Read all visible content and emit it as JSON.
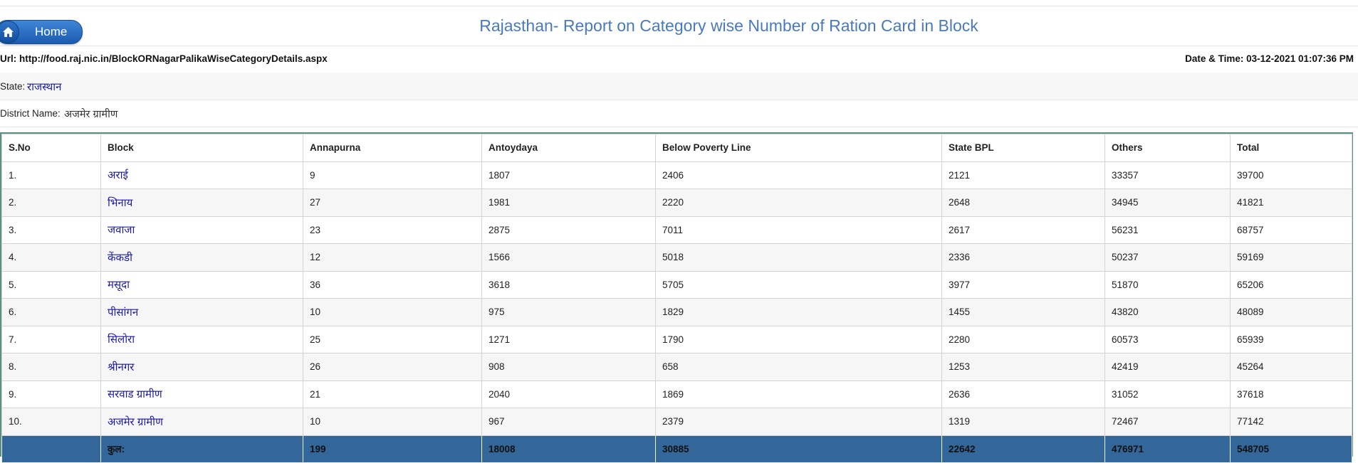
{
  "header": {
    "home_label": "Home",
    "title": "Rajasthan- Report on Category wise Number of Ration Card in Block"
  },
  "info": {
    "url_label": "Url:",
    "url_value": "http://food.raj.nic.in/BlockORNagarPalikaWiseCategoryDetails.aspx",
    "datetime_label": "Date & Time:",
    "datetime_value": "03-12-2021 01:07:36 PM",
    "state_label": "State:",
    "state_value": "राजस्थान",
    "district_label": "District Name:",
    "district_value": "अजमेर ग्रामीण"
  },
  "table": {
    "columns": [
      "S.No",
      "Block",
      "Annapurna",
      "Antoydaya",
      "Below Poverty Line",
      "State BPL",
      "Others",
      "Total"
    ],
    "rows": [
      {
        "sno": "1.",
        "block": "अराई",
        "annapurna": "9",
        "antoydaya": "1807",
        "bpl": "2406",
        "state_bpl": "2121",
        "others": "33357",
        "total": "39700"
      },
      {
        "sno": "2.",
        "block": "भिनाय",
        "annapurna": "27",
        "antoydaya": "1981",
        "bpl": "2220",
        "state_bpl": "2648",
        "others": "34945",
        "total": "41821"
      },
      {
        "sno": "3.",
        "block": "जवाजा",
        "annapurna": "23",
        "antoydaya": "2875",
        "bpl": "7011",
        "state_bpl": "2617",
        "others": "56231",
        "total": "68757"
      },
      {
        "sno": "4.",
        "block": "केंकडी",
        "annapurna": "12",
        "antoydaya": "1566",
        "bpl": "5018",
        "state_bpl": "2336",
        "others": "50237",
        "total": "59169"
      },
      {
        "sno": "5.",
        "block": "मसूदा",
        "annapurna": "36",
        "antoydaya": "3618",
        "bpl": "5705",
        "state_bpl": "3977",
        "others": "51870",
        "total": "65206"
      },
      {
        "sno": "6.",
        "block": "पीसांगन",
        "annapurna": "10",
        "antoydaya": "975",
        "bpl": "1829",
        "state_bpl": "1455",
        "others": "43820",
        "total": "48089"
      },
      {
        "sno": "7.",
        "block": "सिलोरा",
        "annapurna": "25",
        "antoydaya": "1271",
        "bpl": "1790",
        "state_bpl": "2280",
        "others": "60573",
        "total": "65939"
      },
      {
        "sno": "8.",
        "block": "श्रीनगर",
        "annapurna": "26",
        "antoydaya": "908",
        "bpl": "658",
        "state_bpl": "1253",
        "others": "42419",
        "total": "45264"
      },
      {
        "sno": "9.",
        "block": "सरवाड ग्रामीण",
        "annapurna": "21",
        "antoydaya": "2040",
        "bpl": "1869",
        "state_bpl": "2636",
        "others": "31052",
        "total": "37618"
      },
      {
        "sno": "10.",
        "block": "अजमेर ग्रामीण",
        "annapurna": "10",
        "antoydaya": "967",
        "bpl": "2379",
        "state_bpl": "1319",
        "others": "72467",
        "total": "77142"
      }
    ],
    "footer": {
      "label": "कुल:",
      "annapurna": "199",
      "antoydaya": "18008",
      "bpl": "30885",
      "state_bpl": "22642",
      "others": "476971",
      "total": "548705"
    }
  },
  "colors": {
    "title": "#4a7ab7",
    "link": "#1a1aa6",
    "footer_bg": "#336699",
    "grid_border": "#5d8f86"
  }
}
